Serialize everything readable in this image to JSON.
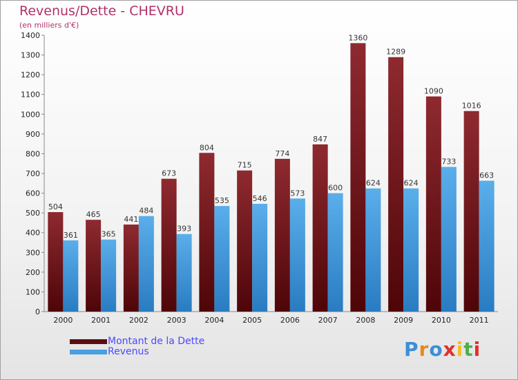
{
  "header": {
    "title": "Revenus/Dette - CHEVRU",
    "subtitle": "(en milliers d'€)"
  },
  "chart_data": {
    "type": "bar",
    "categories": [
      "2000",
      "2001",
      "2002",
      "2003",
      "2004",
      "2005",
      "2006",
      "2007",
      "2008",
      "2009",
      "2010",
      "2011"
    ],
    "series": [
      {
        "name": "Montant de la Dette",
        "color": "#7a1a1f",
        "values": [
          504,
          465,
          441,
          673,
          804,
          715,
          774,
          847,
          1360,
          1289,
          1090,
          1016
        ]
      },
      {
        "name": "Revenus",
        "color": "#4a9fe0",
        "values": [
          361,
          365,
          484,
          393,
          535,
          546,
          573,
          600,
          624,
          624,
          733,
          663
        ]
      }
    ],
    "ylim": [
      0,
      1400
    ],
    "yticks": [
      0,
      100,
      200,
      300,
      400,
      500,
      600,
      700,
      800,
      900,
      1000,
      1100,
      1200,
      1300,
      1400
    ],
    "grid": false,
    "legend_position": "bottom-left"
  },
  "legend": {
    "items": [
      {
        "label": "Montant de la Dette",
        "color": "#5a0d12"
      },
      {
        "label": "Revenus",
        "color": "#4a9fe0"
      }
    ]
  },
  "logo": {
    "letters": [
      "P",
      "r",
      "o",
      "x",
      "i",
      "t",
      "i"
    ],
    "colors": [
      "#3b8fd6",
      "#e58a1f",
      "#3b8fd6",
      "#e0302a",
      "#f0c020",
      "#4caf50",
      "#e0302a"
    ]
  }
}
